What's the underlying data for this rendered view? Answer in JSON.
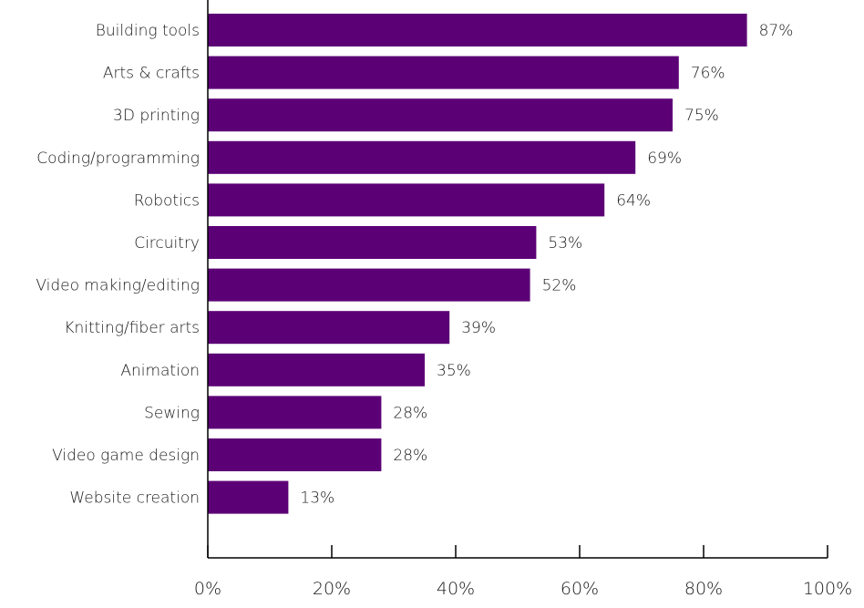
{
  "chart_data": {
    "type": "bar",
    "orientation": "horizontal",
    "title": "",
    "xlabel": "",
    "ylabel": "",
    "categories": [
      "Building tools",
      "Arts & crafts",
      "3D printing",
      "Coding/programming",
      "Robotics",
      "Circuitry",
      "Video making/editing",
      "Knitting/fiber arts",
      "Animation",
      "Sewing",
      "Video game design",
      "Website creation"
    ],
    "values": [
      87,
      76,
      75,
      69,
      64,
      53,
      52,
      39,
      35,
      28,
      28,
      13
    ],
    "value_labels": [
      "87%",
      "76%",
      "75%",
      "69%",
      "64%",
      "53%",
      "52%",
      "39%",
      "35%",
      "28%",
      "28%",
      "13%"
    ],
    "xlim": [
      0,
      100
    ],
    "x_ticks": [
      "0%",
      "20%",
      "40%",
      "60%",
      "80%",
      "100%"
    ],
    "bar_color": "#5c0076",
    "grid": false,
    "legend": "none"
  }
}
